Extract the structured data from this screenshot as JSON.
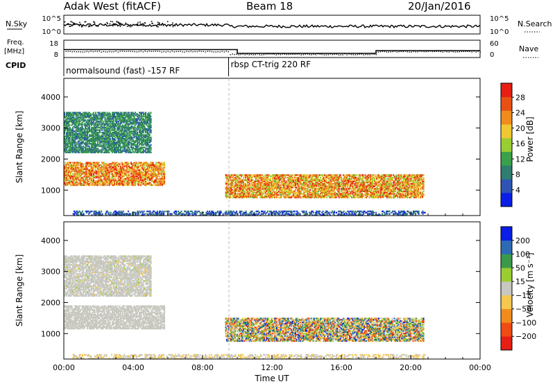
{
  "header": {
    "station": "Adak West (fitACF)",
    "beam": "Beam 18",
    "date": "20/Jan/2016"
  },
  "meta_panel": {
    "nsky_label": "N.Sky",
    "nsearch_label": "N.Search",
    "nsky_ticks": [
      "10^5",
      "10^0"
    ],
    "freq_label": "Freq.",
    "freq_unit": "[MHz]",
    "freq_ticks": [
      "18",
      "8"
    ],
    "nave_label": "Nave",
    "nave_ticks": [
      "60",
      "0"
    ],
    "cpid_label": "CPID",
    "cpid_segments": [
      {
        "start_hour": 0.0,
        "end_hour": 9.5,
        "label": "normalsound (fast) -157 RF"
      },
      {
        "start_hour": 9.5,
        "end_hour": 24.0,
        "label": "rbsp CT-trig 220 RF"
      }
    ],
    "freq_steps": [
      {
        "start_hour": 0.0,
        "end_hour": 9.5,
        "mhz": 12.6
      },
      {
        "start_hour": 9.5,
        "end_hour": 10.0,
        "mhz": 12.6
      },
      {
        "start_hour": 10.0,
        "end_hour": 18.0,
        "mhz": 10.4
      },
      {
        "start_hour": 18.0,
        "end_hour": 24.0,
        "mhz": 12.0
      }
    ]
  },
  "colors": {
    "power_scale": [
      "#0a1ee6",
      "#2e55b4",
      "#2f7d6e",
      "#3aa04a",
      "#9acd32",
      "#f0c832",
      "#f08c1e",
      "#e85014",
      "#e61e14"
    ],
    "velocity_scale": [
      "#e61e14",
      "#f04b14",
      "#f08c1e",
      "#f5c850",
      "#c8c8c0",
      "#9acd32",
      "#3a9a4a",
      "#2e6ab4",
      "#0a1ee6"
    ]
  },
  "chart_data": [
    {
      "type": "heatmap",
      "name": "power",
      "xlabel": "",
      "ylabel": "Slant Range [km]",
      "xlim": [
        0,
        24
      ],
      "ylim": [
        180,
        4600
      ],
      "yticks": [
        "1000",
        "2000",
        "3000",
        "4000"
      ],
      "colorbar_label": "Power [dB]",
      "colorbar_ticks": [
        "28",
        "24",
        "20",
        "16",
        "12",
        "8",
        "4"
      ],
      "colorbar_range": [
        0,
        32
      ],
      "regions": [
        {
          "t0": 0.0,
          "t1": 5.8,
          "r_lo": 1150,
          "r_hi": 1900,
          "v_lo": 16,
          "v_hi": 30
        },
        {
          "t0": 0.0,
          "t1": 5.0,
          "r_lo": 2200,
          "r_hi": 3500,
          "v_lo": 6,
          "v_hi": 14
        },
        {
          "t0": 9.3,
          "t1": 20.7,
          "r_lo": 750,
          "r_hi": 1500,
          "v_lo": 14,
          "v_hi": 30
        },
        {
          "t0": 0.5,
          "t1": 20.8,
          "r_lo": 180,
          "r_hi": 330,
          "v_lo": 2,
          "v_hi": 10
        }
      ]
    },
    {
      "type": "heatmap",
      "name": "velocity",
      "xlabel": "Time UT",
      "ylabel": "Slant Range [km]",
      "xlim": [
        0,
        24
      ],
      "ylim": [
        180,
        4600
      ],
      "xticks": [
        "00:00",
        "04:00",
        "08:00",
        "12:00",
        "16:00",
        "20:00",
        "00:00"
      ],
      "yticks": [
        "1000",
        "2000",
        "3000",
        "4000"
      ],
      "colorbar_label": "Velocity [m s⁻¹]",
      "colorbar_ticks": [
        "200",
        "100",
        "50",
        "15",
        "−15",
        "−50",
        "−100",
        "−200"
      ],
      "colorbar_range": [
        -250,
        250
      ],
      "regions": [
        {
          "t0": 0.0,
          "t1": 5.8,
          "r_lo": 1150,
          "r_hi": 1900,
          "v_lo": -10,
          "v_hi": 10
        },
        {
          "t0": 0.0,
          "t1": 5.0,
          "r_lo": 2200,
          "r_hi": 3500,
          "v_lo": -30,
          "v_hi": 30
        },
        {
          "t0": 9.3,
          "t1": 20.7,
          "r_lo": 750,
          "r_hi": 1500,
          "v_lo": -200,
          "v_hi": 220
        },
        {
          "t0": 0.5,
          "t1": 20.8,
          "r_lo": 180,
          "r_hi": 330,
          "v_lo": -60,
          "v_hi": 20
        }
      ]
    }
  ]
}
